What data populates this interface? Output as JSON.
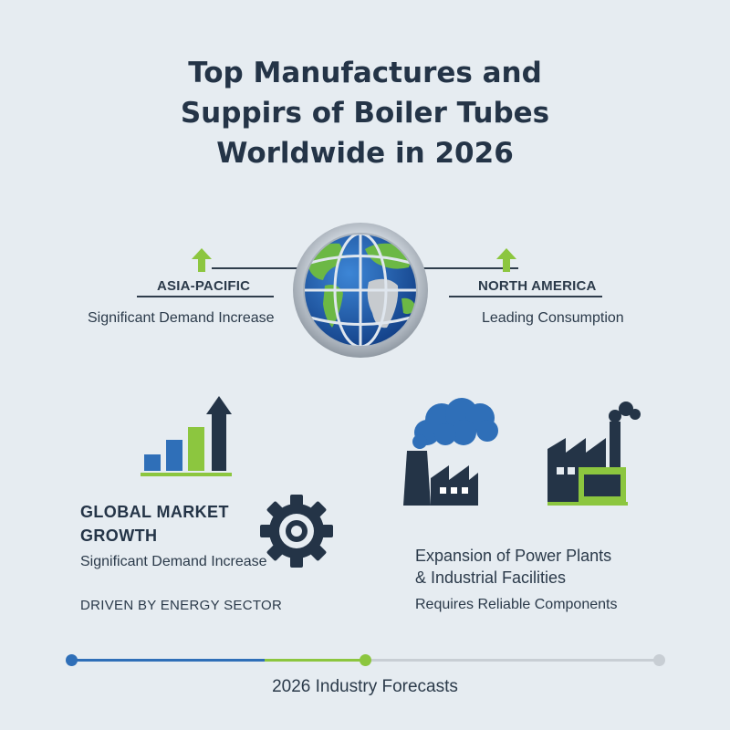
{
  "title": {
    "line1": "Top Manufactures and",
    "line2": "Suppirs of Boiler Tubes",
    "line3": "Worldwide in 2026"
  },
  "regions": {
    "left": {
      "label": "ASIA-PACIFIC",
      "sub": "Significant Demand Increase"
    },
    "right": {
      "label": "NORTH AMERICA",
      "sub": "Leading Consumption"
    }
  },
  "market": {
    "heading_line1": "GLOBAL MARKET",
    "heading_line2": "GROWTH",
    "sub": "Significant Demand Increase",
    "driver": "DRIVEN BY ENERGY SECTOR"
  },
  "expansion": {
    "heading_line1": "Expansion of Power Plants",
    "heading_line2": "& Industrial Facilities",
    "sub": "Requires Reliable Components"
  },
  "timeline": {
    "label": "2026 Industry Forecasts"
  },
  "colors": {
    "navy": "#243447",
    "blue": "#2f6fb8",
    "green": "#8cc63f",
    "gray": "#c8ced4"
  },
  "icons": [
    "globe-icon",
    "up-arrow-icon",
    "growth-chart-icon",
    "gear-icon",
    "power-plant-icon",
    "factory-icon"
  ]
}
